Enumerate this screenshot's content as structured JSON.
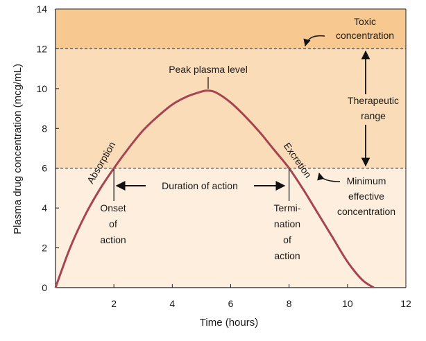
{
  "chart_data": {
    "type": "line",
    "xlabel": "Time (hours)",
    "ylabel": "Plasma drug concentration (mcg/mL)",
    "xlim": [
      0,
      12
    ],
    "ylim": [
      0,
      14
    ],
    "x_ticks": [
      "2",
      "4",
      "6",
      "8",
      "10",
      "12"
    ],
    "y_ticks": [
      "0",
      "2",
      "4",
      "6",
      "8",
      "10",
      "12",
      "14"
    ],
    "grid": false,
    "series": [
      {
        "color": "#a8444f",
        "x": [
          0,
          0.5,
          1,
          1.5,
          2,
          2.5,
          3,
          3.5,
          4,
          4.5,
          5,
          5.2,
          5.5,
          6,
          6.5,
          7,
          7.5,
          8,
          8.5,
          9,
          9.5,
          10,
          10.5,
          10.9
        ],
        "y": [
          0,
          2.0,
          3.6,
          4.9,
          6.0,
          7.0,
          7.9,
          8.6,
          9.2,
          9.6,
          9.85,
          9.9,
          9.8,
          9.3,
          8.6,
          7.8,
          6.9,
          6.0,
          4.9,
          3.7,
          2.5,
          1.3,
          0.4,
          0
        ]
      }
    ],
    "bands": [
      {
        "from": 12,
        "to": 14,
        "color": "#f7c990"
      },
      {
        "from": 6,
        "to": 12,
        "color": "#fbdcb8"
      },
      {
        "from": 0,
        "to": 6,
        "color": "#fdeedd"
      }
    ],
    "thresholds": [
      12,
      6
    ],
    "annotations": {
      "toxic": [
        "Toxic",
        "concentration"
      ],
      "peak": "Peak plasma level",
      "therapeutic": [
        "Therapeutic",
        "range"
      ],
      "absorption": "Absorption",
      "excretion": "Excretion",
      "duration": "Duration of action",
      "minimum": [
        "Minimum",
        "effective",
        "concentration"
      ],
      "onset": [
        "Onset",
        "of",
        "action"
      ],
      "termination": [
        "Termi-",
        "nation",
        "of",
        "action"
      ]
    }
  }
}
